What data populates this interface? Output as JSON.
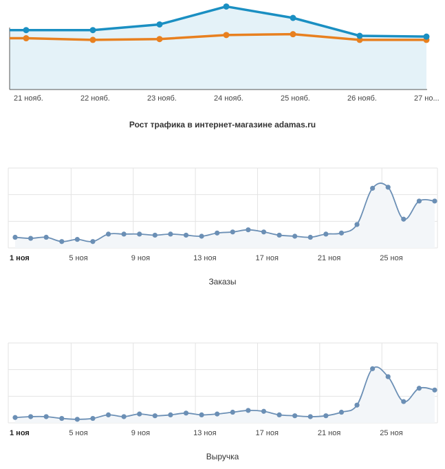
{
  "chart_data": [
    {
      "type": "area",
      "title": "Рост трафика в интернет-магазине adamas.ru",
      "categories": [
        "21 нояб.",
        "22 нояб.",
        "23 нояб.",
        "24 нояб.",
        "25 нояб.",
        "26 нояб.",
        "27 но..."
      ],
      "series": [
        {
          "values": [
            73,
            73,
            80,
            102,
            88,
            66,
            65
          ],
          "color": "#1a8fc2",
          "fill": "#e4f2f8"
        },
        {
          "values": [
            63,
            61,
            62,
            67,
            68,
            61,
            61
          ],
          "color": "#e8801f"
        }
      ],
      "ylim": [
        0,
        110
      ],
      "grid": false
    },
    {
      "type": "line",
      "title": "Заказы",
      "x": [
        "1 ноя",
        "2",
        "3",
        "4",
        "5 ноя",
        "6",
        "7",
        "8",
        "9 ноя",
        "10",
        "11",
        "12",
        "13 ноя",
        "14",
        "15",
        "16",
        "17 ноя",
        "18",
        "19",
        "20",
        "21 ноя",
        "22",
        "23",
        "24",
        "25 ноя",
        "26",
        "27",
        "28"
      ],
      "tick_labels": [
        "1 ноя",
        "5 ноя",
        "9 ноя",
        "13 ноя",
        "17 ноя",
        "21 ноя",
        "25 ноя"
      ],
      "values": [
        10,
        9,
        10,
        6,
        8,
        6,
        13,
        13,
        13,
        12,
        13,
        12,
        11,
        14,
        15,
        17,
        15,
        12,
        11,
        10,
        13,
        14,
        22,
        56,
        57,
        27,
        44,
        44
      ],
      "ylim": [
        0,
        75
      ],
      "grid": true,
      "color": "#6b8fb5"
    },
    {
      "type": "line",
      "title": "Выручка",
      "x": [
        "1 ноя",
        "2",
        "3",
        "4",
        "5 ноя",
        "6",
        "7",
        "8",
        "9 ноя",
        "10",
        "11",
        "12",
        "13 ноя",
        "14",
        "15",
        "16",
        "17 ноя",
        "18",
        "19",
        "20",
        "21 ноя",
        "22",
        "23",
        "24",
        "25 ноя",
        "26",
        "27",
        "28"
      ],
      "tick_labels": [
        "1 ноя",
        "5 ноя",
        "9 ноя",
        "13 ноя",
        "17 ноя",
        "21 ноя",
        "25 ноя"
      ],
      "values": [
        6,
        7,
        7,
        5,
        4,
        5,
        9,
        7,
        10,
        8,
        9,
        11,
        9,
        10,
        12,
        14,
        13,
        9,
        8,
        7,
        8,
        12,
        20,
        61,
        52,
        24,
        39,
        37
      ],
      "ylim": [
        0,
        90
      ],
      "grid": true,
      "color": "#6b8fb5"
    }
  ]
}
